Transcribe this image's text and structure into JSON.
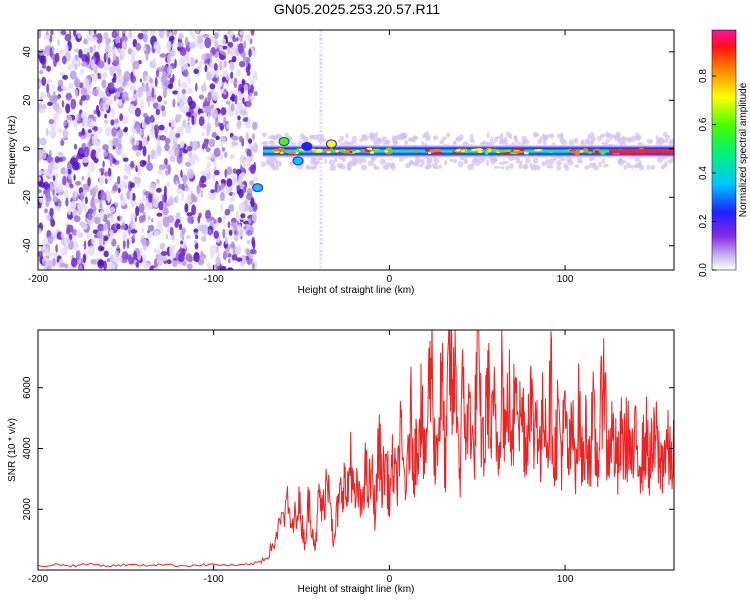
{
  "title": "GN05.2025.253.20.57.R11",
  "colors": {
    "series": "#ee2222",
    "scatter": "#7a1fe0",
    "frame": "#000000"
  },
  "chart_data": [
    {
      "type": "heatmap",
      "title": "GN05.2025.253.20.57.R11",
      "xlabel": "Height of straight line (km)",
      "ylabel": "Frequency (Hz)",
      "xlim": [
        -200,
        162
      ],
      "ylim": [
        -50,
        49
      ],
      "xticks": [
        -200,
        -100,
        0,
        100
      ],
      "yticks": [
        -40,
        -20,
        0,
        20,
        40
      ],
      "colorbar": {
        "label": "Normalized spectral amplitude",
        "range": [
          0.0,
          0.99
        ],
        "ticks": [
          "0.0",
          "0.2",
          "0.4",
          "0.6",
          "0.8"
        ],
        "tick_values": [
          0.0,
          0.2,
          0.4,
          0.6,
          0.8
        ],
        "colormap": "rainbow (violet-blue-cyan-green-yellow-red-magenta)"
      },
      "regions": [
        {
          "description": "broadband noise scatter",
          "x_range": [
            -200,
            -76
          ],
          "y_range": [
            -50,
            49
          ],
          "amplitude_range": [
            0.0,
            0.15
          ]
        },
        {
          "description": "faint vertical line",
          "x": -39,
          "y_range": [
            -50,
            49
          ],
          "amplitude": 0.05
        },
        {
          "description": "signal onset blob",
          "x_range": [
            -76,
            -72
          ],
          "y_range": [
            -18,
            -14
          ],
          "amplitude": 0.4
        },
        {
          "description": "signal band",
          "x_range": [
            -72,
            162
          ],
          "center_freq": -1,
          "halfwidth": 3,
          "amplitude_range": [
            0.4,
            0.95
          ]
        }
      ]
    },
    {
      "type": "line",
      "xlabel": "Height of straight line (km)",
      "ylabel": "SNR (10 * v/v)",
      "xlim": [
        -200,
        162
      ],
      "ylim": [
        0,
        7900
      ],
      "xticks": [
        -200,
        -100,
        0,
        100
      ],
      "yticks": [
        2000,
        4000,
        6000
      ],
      "series": [
        {
          "name": "SNR",
          "x": [
            -200,
            -190,
            -180,
            -170,
            -160,
            -150,
            -140,
            -130,
            -120,
            -110,
            -100,
            -90,
            -80,
            -75,
            -70,
            -66,
            -62,
            -58,
            -55,
            -52,
            -50,
            -48,
            -46,
            -44,
            -42,
            -40,
            -38,
            -36,
            -34,
            -32,
            -30,
            -28,
            -26,
            -24,
            -22,
            -20,
            -18,
            -16,
            -14,
            -12,
            -10,
            -8,
            -6,
            -4,
            -2,
            0,
            2,
            4,
            6,
            8,
            10,
            12,
            14,
            16,
            18,
            20,
            22,
            24,
            26,
            28,
            30,
            32,
            34,
            36,
            38,
            40,
            42,
            44,
            46,
            48,
            50,
            52,
            54,
            56,
            58,
            60,
            62,
            64,
            66,
            68,
            70,
            72,
            74,
            76,
            78,
            80,
            82,
            84,
            86,
            88,
            90,
            92,
            94,
            96,
            98,
            100,
            102,
            104,
            106,
            108,
            110,
            112,
            114,
            116,
            118,
            120,
            122,
            124,
            126,
            128,
            130,
            132,
            134,
            136,
            138,
            140,
            142,
            144,
            146,
            148,
            150,
            152,
            154,
            156,
            158,
            160,
            162
          ],
          "y": [
            120,
            180,
            140,
            200,
            130,
            170,
            150,
            190,
            140,
            160,
            180,
            150,
            170,
            250,
            420,
            850,
            1500,
            2100,
            1300,
            2400,
            1600,
            900,
            2300,
            1500,
            700,
            2600,
            1800,
            2900,
            3300,
            600,
            1800,
            2400,
            3100,
            2200,
            3900,
            2100,
            2700,
            1900,
            3400,
            2600,
            3100,
            1800,
            4200,
            2900,
            3600,
            2400,
            3500,
            2700,
            4400,
            3300,
            2800,
            5200,
            3600,
            4200,
            5800,
            3100,
            5500,
            7100,
            3600,
            4800,
            6100,
            3200,
            7300,
            5400,
            6700,
            3000,
            6300,
            4200,
            5600,
            3400,
            6900,
            4900,
            3800,
            6300,
            4300,
            5300,
            3800,
            6800,
            4200,
            5900,
            3500,
            7600,
            4900,
            5200,
            3900,
            6300,
            4300,
            5400,
            3600,
            5900,
            4300,
            6000,
            3600,
            5200,
            3900,
            4900,
            3500,
            4500,
            3800,
            5300,
            3300,
            4700,
            3800,
            4900,
            3500,
            4400,
            7400,
            3500,
            4600,
            4100,
            3300,
            4300,
            4100,
            4500,
            3400,
            4100,
            3900,
            3700,
            4400,
            3600,
            3900,
            4300,
            3400,
            3800,
            4100,
            3500,
            3900
          ]
        }
      ]
    }
  ]
}
